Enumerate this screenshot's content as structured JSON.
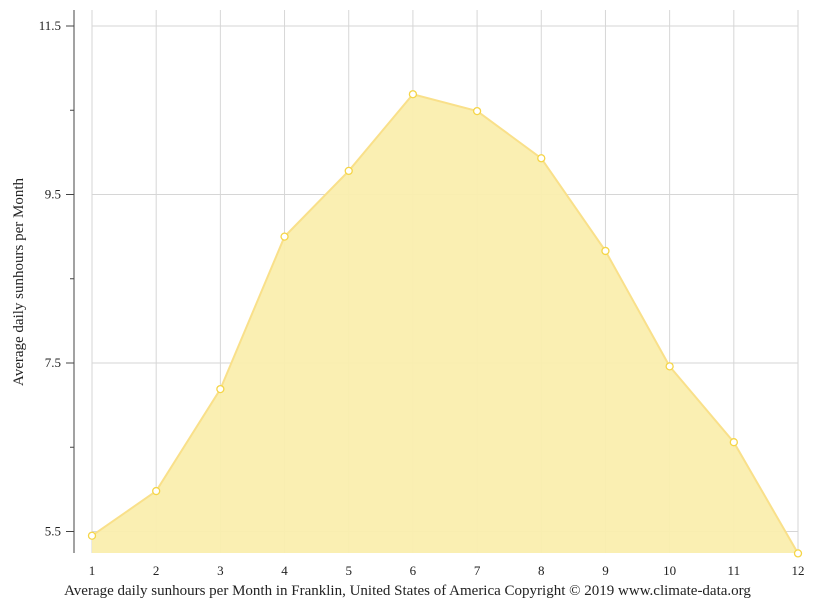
{
  "chart_data": {
    "type": "area",
    "title": "",
    "xlabel": "Average daily sunhours per Month in Franklin, United States of America Copyright © 2019 www.climate-data.org",
    "ylabel": "Average daily sunhours per Month",
    "categories": [
      "1",
      "2",
      "3",
      "4",
      "5",
      "6",
      "7",
      "8",
      "9",
      "10",
      "11",
      "12"
    ],
    "series": [
      {
        "name": "Average daily sunhours",
        "values": [
          5.45,
          5.98,
          7.19,
          9.0,
          9.78,
          10.69,
          10.49,
          9.93,
          8.83,
          7.46,
          6.56,
          5.24
        ]
      }
    ],
    "ylim": [
      5.24,
      11.7
    ],
    "yticks": [
      "5.5",
      "7.5",
      "9.5",
      "11.5"
    ],
    "grid": true,
    "legend": "none",
    "colors": {
      "fill": "#faeeae",
      "line": "#f9e08a",
      "point": "#f5d547"
    }
  }
}
